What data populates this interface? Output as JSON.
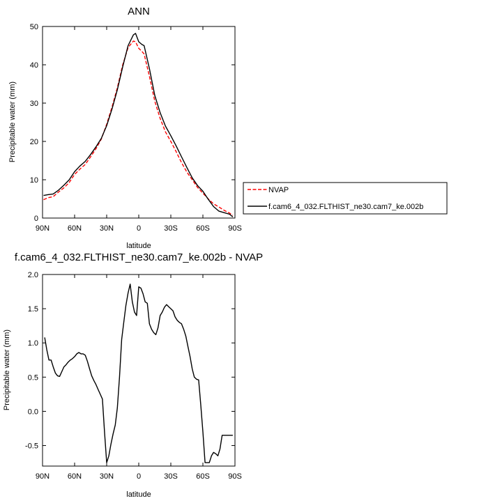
{
  "chart_data": [
    {
      "type": "line",
      "title": "ANN",
      "xlabel": "latitude",
      "ylabel": "Precipitable water (mm)",
      "xlim": [
        90,
        -90
      ],
      "ylim": [
        0,
        50
      ],
      "xticks": [
        90,
        60,
        30,
        0,
        -30,
        -60,
        -90
      ],
      "xtick_labels": [
        "90N",
        "60N",
        "30N",
        "0",
        "30S",
        "60S",
        "90S"
      ],
      "yticks": [
        0,
        10,
        20,
        30,
        40,
        50
      ],
      "ytick_labels": [
        "0",
        "10",
        "20",
        "30",
        "40",
        "50"
      ],
      "grid": false,
      "legend_placement": "right, outside plot",
      "series": [
        {
          "name": "NVAP",
          "color": "#ff0000",
          "style": "dashed",
          "x": [
            89,
            85,
            80,
            75,
            70,
            65,
            60,
            55,
            50,
            45,
            40,
            35,
            30,
            25,
            20,
            15,
            10,
            5,
            3,
            0,
            -3,
            -5,
            -10,
            -15,
            -20,
            -25,
            -30,
            -35,
            -40,
            -45,
            -50,
            -55,
            -60,
            -65,
            -70,
            -75,
            -80,
            -85,
            -88
          ],
          "y": [
            4.8,
            5.3,
            5.6,
            6.8,
            7.9,
            9.3,
            11.4,
            12.8,
            14.0,
            16.0,
            18.1,
            20.6,
            24.5,
            29.0,
            34.0,
            40.0,
            44.5,
            46.2,
            46.0,
            44.3,
            43.5,
            42.8,
            37.0,
            30.5,
            26.0,
            22.5,
            20.0,
            17.3,
            14.5,
            12.0,
            10.0,
            8.0,
            6.5,
            5.0,
            3.7,
            2.9,
            2.0,
            1.3,
            0.7
          ]
        },
        {
          "name": "f.cam6_4_032.FLTHIST_ne30.cam7_ke.002b",
          "color": "#000000",
          "style": "solid",
          "x": [
            89,
            85,
            80,
            75,
            70,
            65,
            60,
            55,
            50,
            45,
            40,
            35,
            30,
            25,
            20,
            15,
            10,
            5,
            3,
            0,
            -3,
            -5,
            -10,
            -15,
            -20,
            -25,
            -30,
            -35,
            -40,
            -45,
            -50,
            -55,
            -60,
            -65,
            -70,
            -75,
            -80,
            -85,
            -88
          ],
          "y": [
            5.9,
            6.1,
            6.3,
            7.3,
            8.6,
            10.0,
            12.1,
            13.6,
            14.8,
            16.6,
            18.6,
            20.8,
            24.1,
            28.5,
            33.5,
            39.5,
            45.0,
            47.8,
            48.2,
            46.0,
            45.3,
            45.0,
            39.0,
            32.0,
            27.5,
            24.0,
            21.5,
            18.8,
            16.0,
            13.2,
            10.5,
            8.5,
            7.0,
            4.9,
            3.0,
            1.8,
            1.4,
            1.0,
            0.3
          ]
        }
      ]
    },
    {
      "type": "line",
      "title": "f.cam6_4_032.FLTHIST_ne30.cam7_ke.002b - NVAP",
      "xlabel": "latitude",
      "ylabel": "Precipitable water (mm)",
      "xlim": [
        90,
        -90
      ],
      "ylim": [
        -0.8,
        2.0
      ],
      "xticks": [
        90,
        60,
        30,
        0,
        -30,
        -60,
        -90
      ],
      "xtick_labels": [
        "90N",
        "60N",
        "30N",
        "0",
        "30S",
        "60S",
        "90S"
      ],
      "yticks": [
        -0.5,
        0.0,
        0.5,
        1.0,
        1.5,
        2.0
      ],
      "ytick_labels": [
        "-0.5",
        "0.0",
        "0.5",
        "1.0",
        "1.5",
        "2.0"
      ],
      "grid": false,
      "series": [
        {
          "color": "#000000",
          "style": "solid",
          "x": [
            88,
            86,
            84,
            82,
            80,
            78,
            76,
            74,
            72,
            70,
            68,
            66,
            64,
            62,
            60,
            58,
            56,
            54,
            52,
            50,
            48,
            46,
            44,
            42,
            40,
            38,
            36,
            34,
            32,
            30,
            28,
            26,
            24,
            22,
            20,
            18,
            16,
            14,
            12,
            10,
            8,
            6,
            4,
            2,
            0,
            -2,
            -4,
            -6,
            -8,
            -10,
            -12,
            -14,
            -16,
            -18,
            -20,
            -22,
            -24,
            -26,
            -28,
            -30,
            -32,
            -34,
            -36,
            -38,
            -40,
            -42,
            -44,
            -46,
            -48,
            -50,
            -52,
            -54,
            -56,
            -58,
            -60,
            -62,
            -64,
            -66,
            -68,
            -70,
            -72,
            -74,
            -76,
            -78,
            -80,
            -82,
            -84,
            -86,
            -88
          ],
          "y": [
            1.08,
            0.9,
            0.75,
            0.75,
            0.65,
            0.56,
            0.52,
            0.51,
            0.58,
            0.65,
            0.68,
            0.72,
            0.75,
            0.77,
            0.8,
            0.84,
            0.86,
            0.84,
            0.84,
            0.82,
            0.73,
            0.62,
            0.52,
            0.45,
            0.39,
            0.32,
            0.25,
            0.18,
            -0.3,
            -0.75,
            -0.65,
            -0.48,
            -0.33,
            -0.2,
            0.05,
            0.5,
            1.05,
            1.3,
            1.55,
            1.73,
            1.86,
            1.6,
            1.45,
            1.4,
            1.82,
            1.8,
            1.72,
            1.6,
            1.58,
            1.28,
            1.2,
            1.15,
            1.12,
            1.22,
            1.4,
            1.45,
            1.52,
            1.56,
            1.53,
            1.5,
            1.47,
            1.38,
            1.33,
            1.3,
            1.28,
            1.2,
            1.1,
            0.95,
            0.8,
            0.62,
            0.5,
            0.47,
            0.46,
            0.1,
            -0.3,
            -0.75,
            -0.75,
            -0.75,
            -0.65,
            -0.6,
            -0.62,
            -0.65,
            -0.55,
            -0.35,
            -0.35,
            -0.35,
            -0.35,
            -0.35,
            -0.35
          ]
        }
      ]
    }
  ]
}
